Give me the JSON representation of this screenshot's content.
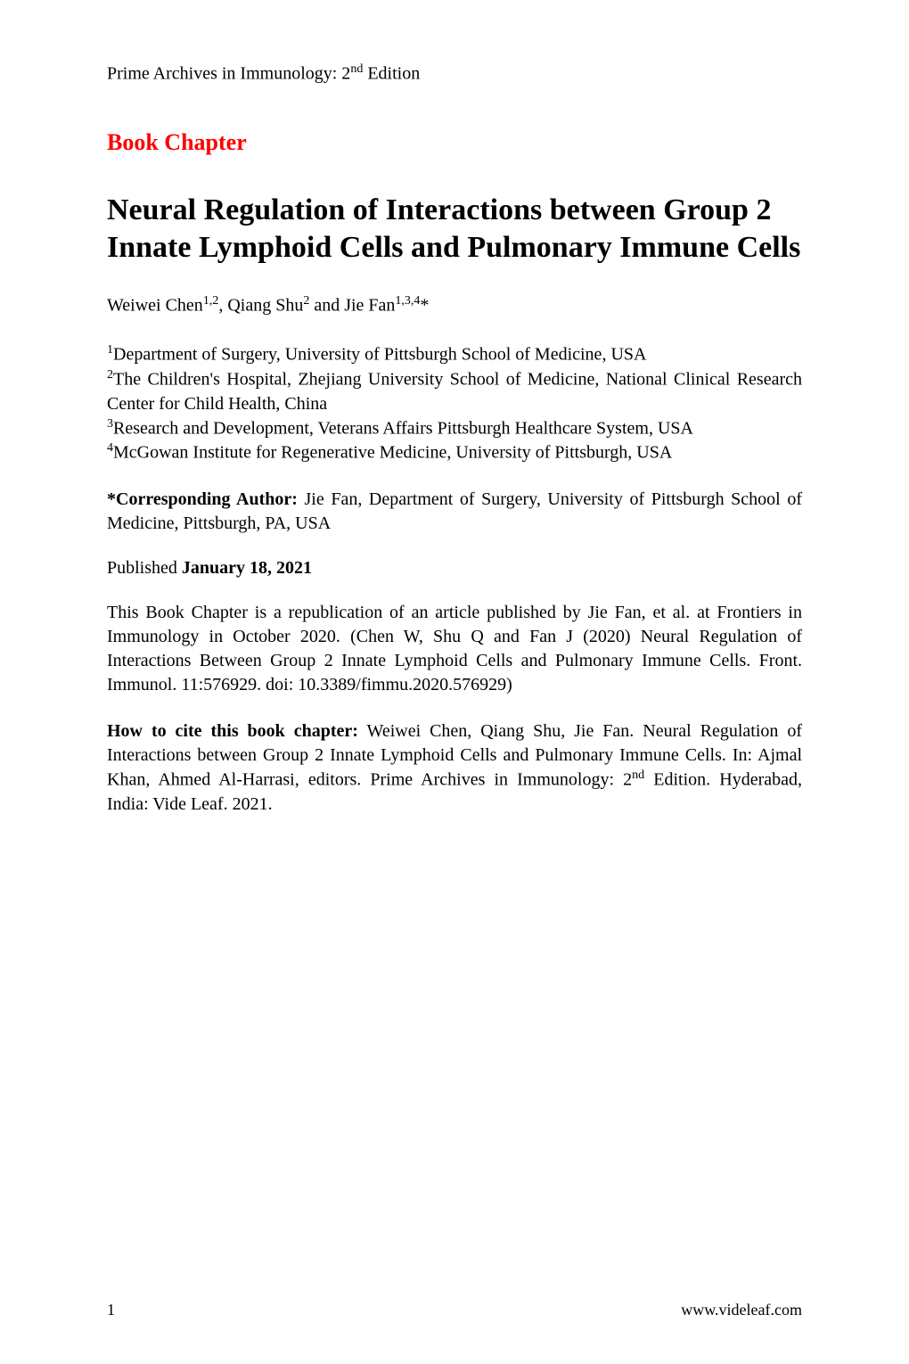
{
  "colors": {
    "background": "#ffffff",
    "text": "#000000",
    "section_label": "#ff0000"
  },
  "typography": {
    "base_family": "Times New Roman",
    "running_head_size_pt": 15,
    "section_label_size_pt": 20,
    "title_size_pt": 26,
    "body_size_pt": 15,
    "footer_size_pt": 14
  },
  "running_head": {
    "prefix": "Prime Archives in Immunology: 2",
    "sup": "nd",
    "suffix": " Edition"
  },
  "section_label": "Book Chapter",
  "title": "Neural Regulation of Interactions between Group 2 Innate Lymphoid Cells and Pulmonary Immune Cells",
  "authors": {
    "a1_name": "Weiwei Chen",
    "a1_sup": "1,2",
    "sep1": ", ",
    "a2_name": "Qiang Shu",
    "a2_sup": "2",
    "sep2": " and ",
    "a3_name": "Jie Fan",
    "a3_sup": "1,3,4",
    "a3_mark": "*"
  },
  "affiliations": {
    "a1": {
      "sup": "1",
      "text": "Department of Surgery, University of Pittsburgh School of Medicine, USA"
    },
    "a2": {
      "sup": "2",
      "text": "The Children's Hospital, Zhejiang University School of Medicine, National Clinical Research Center for Child Health, China"
    },
    "a3": {
      "sup": "3",
      "text": "Research and Development, Veterans Affairs Pittsburgh Healthcare System, USA"
    },
    "a4": {
      "sup": "4",
      "text": "McGowan Institute for Regenerative Medicine, University of Pittsburgh, USA"
    }
  },
  "corresponding": {
    "label": "*Corresponding Author:",
    "text": " Jie Fan, Department of Surgery, University of Pittsburgh School of Medicine, Pittsburgh, PA, USA"
  },
  "published": {
    "prefix": "Published ",
    "date": "January 18, 2021"
  },
  "republication": "This Book Chapter is a republication of an article published by Jie Fan, et al. at Frontiers in Immunology in October 2020. (Chen W, Shu Q and Fan J (2020) Neural Regulation of Interactions Between Group 2 Innate Lymphoid Cells and Pulmonary Immune Cells. Front. Immunol. 11:576929. doi: 10.3389/fimmu.2020.576929)",
  "citation": {
    "label": "How to cite this book chapter:",
    "text_prefix": " Weiwei Chen, Qiang Shu, Jie Fan. Neural Regulation of Interactions between Group 2 Innate Lymphoid Cells and Pulmonary Immune Cells. In: Ajmal Khan, Ahmed Al-Harrasi, editors. Prime Archives in Immunology: 2",
    "sup": "nd",
    "text_suffix": " Edition. Hyderabad, India: Vide Leaf. 2021."
  },
  "footer": {
    "page_number": "1",
    "site": "www.videleaf.com"
  }
}
